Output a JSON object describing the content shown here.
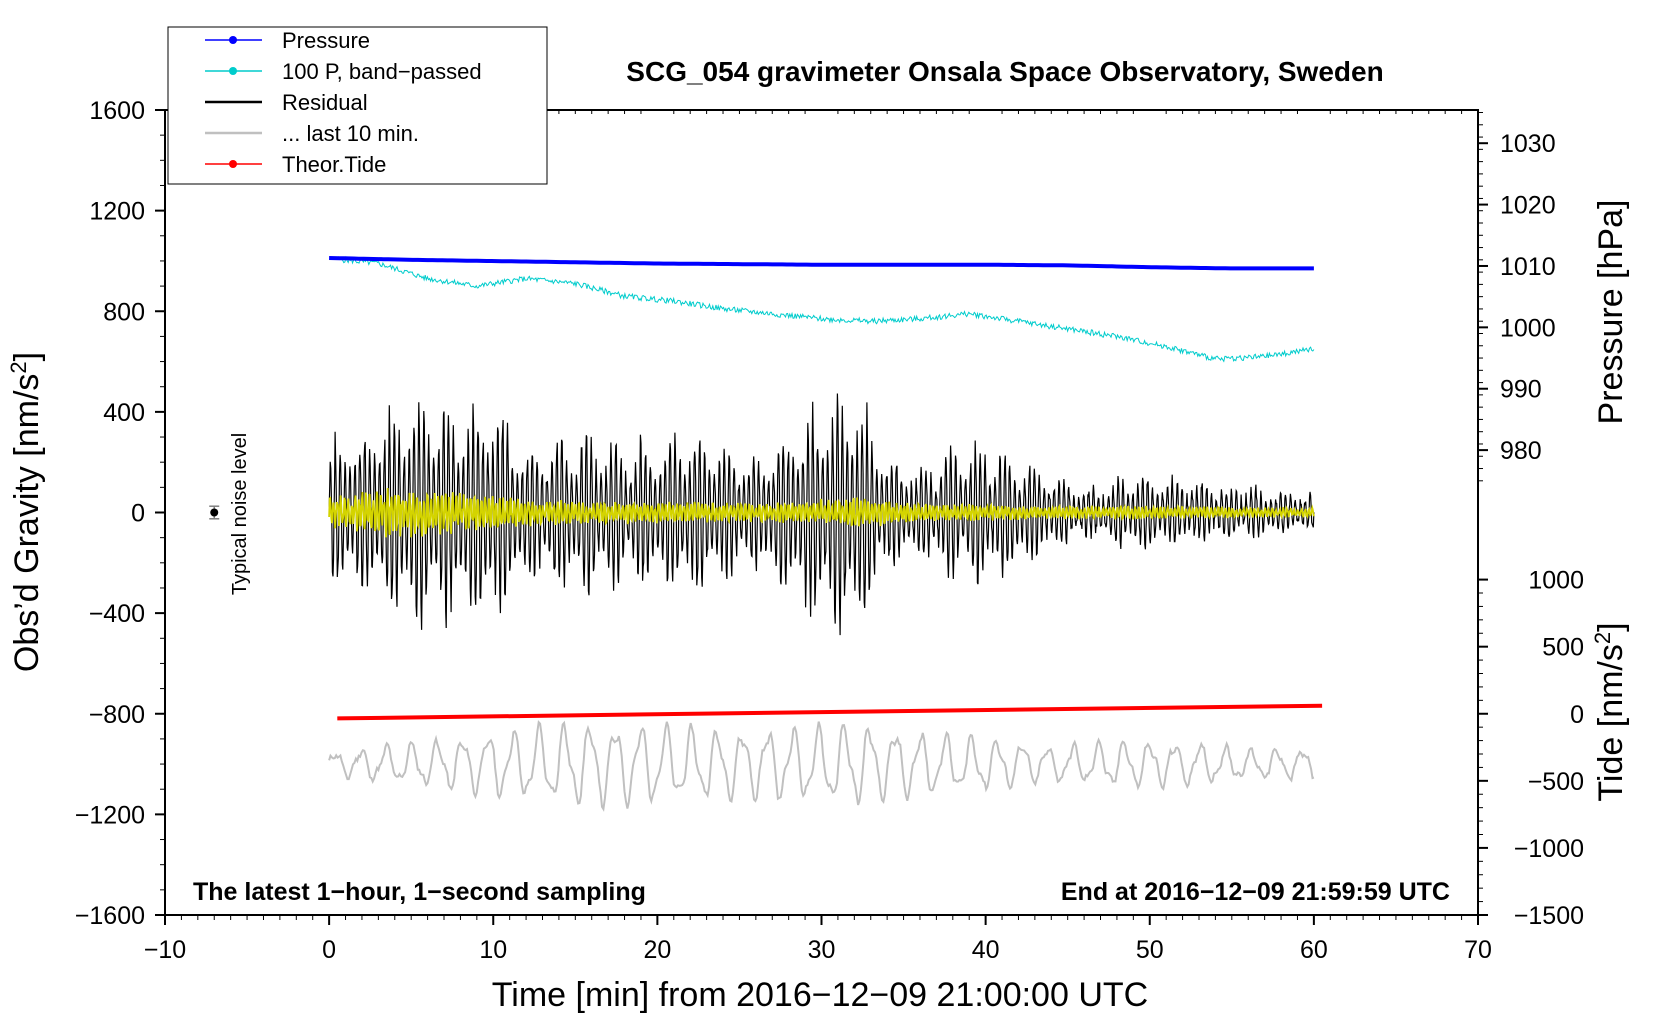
{
  "chart_data": {
    "type": "line",
    "title": "SCG_054 gravimeter Onsala Space Observatory, Sweden",
    "xlabel": "Time [min] from 2016−12−09 21:00:00 UTC",
    "ylabel_left": "Obs’d Gravity [nm/s",
    "ylabel_left_sup": "2",
    "ylabel_left_end": "]",
    "ylabel_right_top": "Pressure [hPa]",
    "ylabel_right_bottom": "Tide [nm/s",
    "ylabel_right_bottom_sup": "2",
    "ylabel_right_bottom_end": "]",
    "xlim": [
      -10,
      70
    ],
    "ylim": [
      -1600,
      1600
    ],
    "x_ticks": [
      -10,
      0,
      10,
      20,
      30,
      40,
      50,
      60,
      70
    ],
    "x_tick_labels": [
      "−10",
      "0",
      "10",
      "20",
      "30",
      "40",
      "50",
      "60",
      "70"
    ],
    "y_ticks": [
      -1600,
      -1200,
      -800,
      -400,
      0,
      400,
      800,
      1200,
      1600
    ],
    "y_tick_labels": [
      "−1600",
      "−1200",
      "−800",
      "−400",
      "0",
      "400",
      "800",
      "1200",
      "1600"
    ],
    "pressure_axis": {
      "ticks": [
        980,
        990,
        1000,
        1010,
        1020,
        1030
      ],
      "tick_labels": [
        "980",
        "990",
        "1000",
        "1010",
        "1020",
        "1030"
      ],
      "map_1010_to_gravity": 980,
      "gravity_per_hpa": 24.4
    },
    "tide_axis": {
      "ticks": [
        -1500,
        -1000,
        -500,
        0,
        500,
        1000
      ],
      "tick_labels": [
        "−1500",
        "−1000",
        "−500",
        "0",
        "500",
        "1000"
      ],
      "map_0_to_gravity": -800,
      "gravity_per_unit": 0.5333
    },
    "annotations": {
      "left": "The latest 1−hour, 1−second sampling",
      "right": "End at 2016−12−09 21:59:59 UTC",
      "noise": "Typical noise level"
    },
    "noise_marker": {
      "x": -7,
      "y": 0,
      "err": 25
    },
    "legend": [
      {
        "label": "Pressure",
        "color": "#0000ff",
        "marker": true
      },
      {
        "label": "100 P, band−passed",
        "color": "#00cccc",
        "marker": true
      },
      {
        "label": "Residual",
        "color": "#000000",
        "marker": false
      },
      {
        "label": "... last 10 min.",
        "color": "#c0c0c0",
        "marker": false
      },
      {
        "label": "Theor.Tide",
        "color": "#ff0000",
        "marker": true
      }
    ],
    "series": [
      {
        "name": "Pressure",
        "color": "#0000ff",
        "unit": "hPa",
        "x": [
          0,
          5,
          10,
          15,
          20,
          25,
          30,
          35,
          40,
          45,
          50,
          55,
          60
        ],
        "values": [
          1011.3,
          1011.0,
          1010.8,
          1010.6,
          1010.4,
          1010.3,
          1010.2,
          1010.2,
          1010.2,
          1010.1,
          1009.8,
          1009.6,
          1009.6
        ]
      },
      {
        "name": "100 P, band−passed",
        "color": "#00cccc",
        "unit": "nm/s2",
        "x": [
          0,
          3,
          6,
          9,
          12,
          15,
          18,
          21,
          24,
          27,
          30,
          33,
          36,
          39,
          42,
          45,
          48,
          51,
          54,
          57,
          60
        ],
        "values": [
          1010,
          990,
          930,
          900,
          930,
          910,
          860,
          840,
          810,
          790,
          770,
          760,
          770,
          790,
          760,
          730,
          700,
          660,
          610,
          620,
          650
        ]
      },
      {
        "name": "Residual",
        "color": "#000000",
        "unit": "nm/s2",
        "x": [
          0,
          2,
          4,
          6,
          8,
          10,
          12,
          14,
          16,
          18,
          20,
          22,
          24,
          26,
          28,
          30,
          32,
          34,
          36,
          38,
          40,
          42,
          44,
          46,
          48,
          50,
          52,
          54,
          56,
          58,
          60
        ],
        "amplitude": [
          300,
          380,
          480,
          540,
          450,
          520,
          280,
          350,
          360,
          300,
          330,
          380,
          300,
          250,
          380,
          480,
          560,
          260,
          200,
          300,
          320,
          250,
          180,
          110,
          150,
          160,
          150,
          120,
          110,
          90,
          80
        ]
      },
      {
        "name": "... last 10 min.",
        "color": "#c0c0c0",
        "unit": "nm/s2",
        "x": [
          0,
          4,
          8,
          12,
          16,
          20,
          24,
          28,
          32,
          36,
          40,
          44,
          48,
          52,
          56,
          60
        ],
        "amplitude": [
          50,
          80,
          110,
          150,
          170,
          160,
          140,
          150,
          170,
          130,
          110,
          70,
          100,
          90,
          60,
          60
        ],
        "offset": -1000
      },
      {
        "name": "Theor.Tide",
        "color": "#ff0000",
        "unit": "nm/s2",
        "x": [
          0.5,
          60.5
        ],
        "values": [
          -35,
          60
        ]
      },
      {
        "name": "Band-passed residual",
        "color": "#d4d400",
        "unit": "nm/s2",
        "x": [
          0,
          4,
          8,
          12,
          16,
          20,
          24,
          28,
          32,
          36,
          40,
          44,
          48,
          52,
          56,
          60
        ],
        "amplitude": [
          60,
          100,
          80,
          50,
          45,
          40,
          40,
          40,
          60,
          35,
          30,
          25,
          25,
          25,
          20,
          20
        ]
      }
    ]
  }
}
